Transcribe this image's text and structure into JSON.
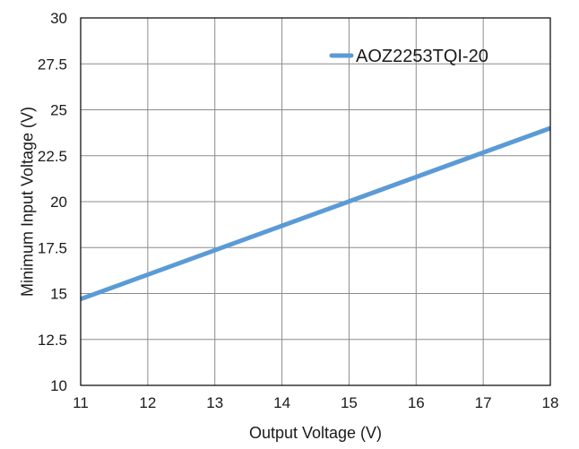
{
  "chart_data": {
    "type": "line",
    "title": "",
    "xlabel": "Output Voltage (V)",
    "ylabel": "Minimum Input Voltage (V)",
    "xlim": [
      11,
      18
    ],
    "ylim": [
      10,
      30
    ],
    "x_ticks": [
      11,
      12,
      13,
      14,
      15,
      16,
      17,
      18
    ],
    "y_ticks": [
      10,
      12.5,
      15,
      17.5,
      20,
      22.5,
      25,
      27.5,
      30
    ],
    "grid": true,
    "legend_position": "top-right",
    "series": [
      {
        "name": "AOZ2253TQI-20",
        "color": "#5b9bd5",
        "x": [
          11,
          18
        ],
        "y": [
          14.7,
          24.0
        ]
      }
    ]
  }
}
